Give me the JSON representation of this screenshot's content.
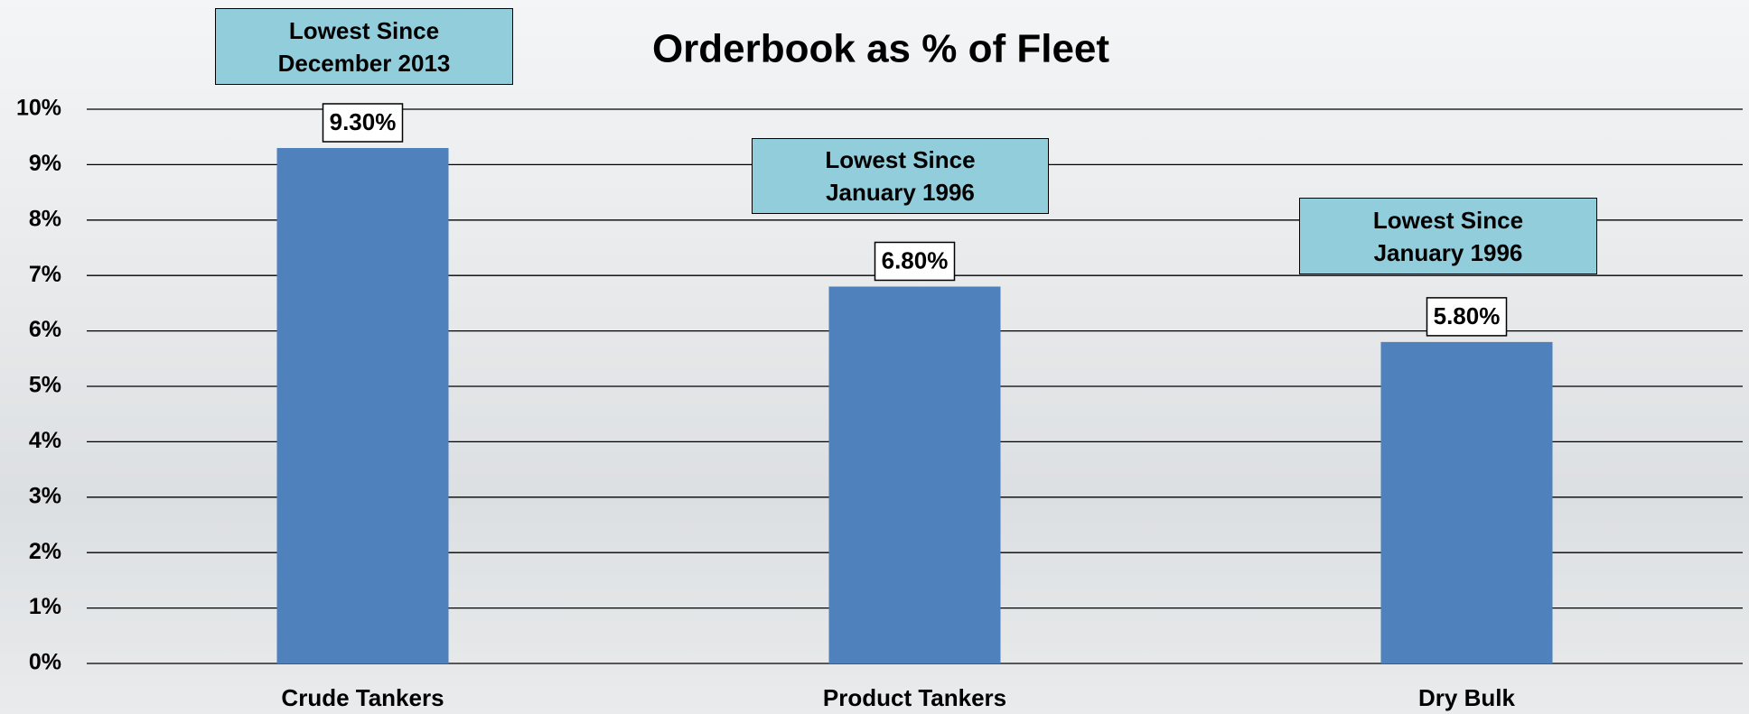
{
  "chart_data": {
    "type": "bar",
    "title": "Orderbook as % of Fleet",
    "categories": [
      "Crude Tankers",
      "Product Tankers",
      "Dry Bulk"
    ],
    "values": [
      9.3,
      6.8,
      5.8
    ],
    "value_labels": [
      "9.30%",
      "6.80%",
      "5.80%"
    ],
    "color": "#4f81bd",
    "ylim": [
      0,
      10
    ],
    "yticks": [
      {
        "value": 0,
        "label": "0%"
      },
      {
        "value": 1,
        "label": "1%"
      },
      {
        "value": 2,
        "label": "2%"
      },
      {
        "value": 3,
        "label": "3%"
      },
      {
        "value": 4,
        "label": "4%"
      },
      {
        "value": 5,
        "label": "5%"
      },
      {
        "value": 6,
        "label": "6%"
      },
      {
        "value": 7,
        "label": "7%"
      },
      {
        "value": 8,
        "label": "8%"
      },
      {
        "value": 9,
        "label": "9%"
      },
      {
        "value": 10,
        "label": "10%"
      }
    ],
    "grid": true,
    "annotations": [
      {
        "text": "Lowest Since December 2013",
        "color": "#92cddc"
      },
      {
        "text": "Lowest Since January 1996",
        "color": "#92cddc"
      },
      {
        "text": "Lowest Since January 1996",
        "color": "#92cddc"
      }
    ]
  }
}
